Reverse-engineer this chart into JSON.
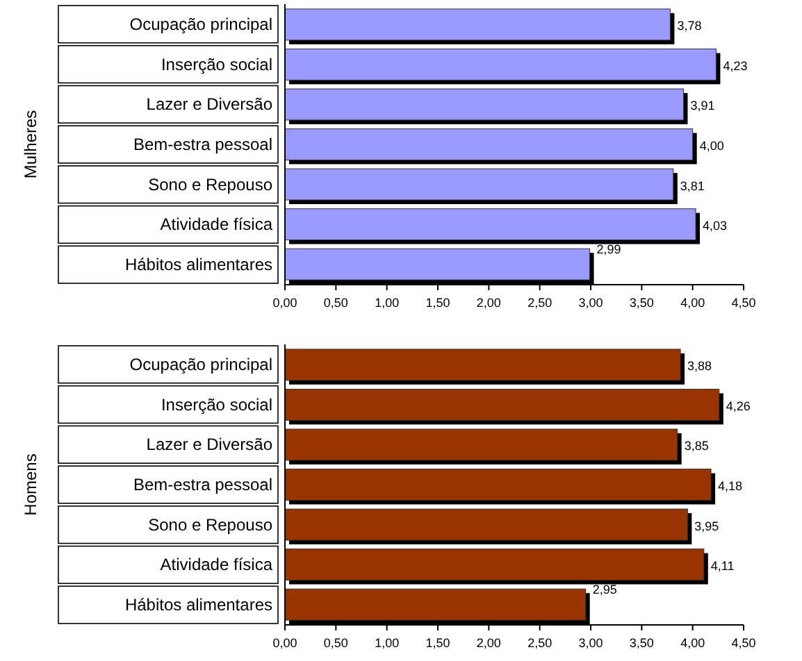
{
  "chart_data": [
    {
      "type": "bar",
      "orientation": "horizontal",
      "ylabel": "Mulheres",
      "categories": [
        "Ocupação principal",
        "Inserção social",
        "Lazer e Diversão",
        "Bem-estra pessoal",
        "Sono e Repouso",
        "Atividade física",
        "Hábitos alimentares"
      ],
      "values": [
        3.78,
        4.23,
        3.91,
        4.0,
        3.81,
        4.03,
        2.99
      ],
      "value_labels": [
        "3,78",
        "4,23",
        "3,91",
        "4,00",
        "3,81",
        "4,03",
        "2,99"
      ],
      "color": "#9999ff",
      "xlim": [
        0,
        4.5
      ],
      "xticks": [
        {
          "value": 0,
          "label": "0,00"
        },
        {
          "value": 0.5,
          "label": "0,50"
        },
        {
          "value": 1,
          "label": "1,00"
        },
        {
          "value": 1.5,
          "label": "1,50"
        },
        {
          "value": 2,
          "label": "2,00"
        },
        {
          "value": 2.5,
          "label": "2,50"
        },
        {
          "value": 3,
          "label": "3,00"
        },
        {
          "value": 3.5,
          "label": "3,50"
        },
        {
          "value": 4,
          "label": "4,00"
        },
        {
          "value": 4.5,
          "label": "4,50"
        }
      ],
      "grid": false
    },
    {
      "type": "bar",
      "orientation": "horizontal",
      "ylabel": "Homens",
      "categories": [
        "Ocupação principal",
        "Inserção social",
        "Lazer e Diversão",
        "Bem-estra pessoal",
        "Sono e Repouso",
        "Atividade física",
        "Hábitos alimentares"
      ],
      "values": [
        3.88,
        4.26,
        3.85,
        4.18,
        3.95,
        4.11,
        2.95
      ],
      "value_labels": [
        "3,88",
        "4,26",
        "3,85",
        "4,18",
        "3,95",
        "4,11",
        "2,95"
      ],
      "color": "#993300",
      "xlim": [
        0,
        4.5
      ],
      "xticks": [
        {
          "value": 0,
          "label": "0,00"
        },
        {
          "value": 0.5,
          "label": "0,50"
        },
        {
          "value": 1,
          "label": "1,00"
        },
        {
          "value": 1.5,
          "label": "1,50"
        },
        {
          "value": 2,
          "label": "2,00"
        },
        {
          "value": 2.5,
          "label": "2,50"
        },
        {
          "value": 3,
          "label": "3,00"
        },
        {
          "value": 3.5,
          "label": "3,50"
        },
        {
          "value": 4,
          "label": "4,00"
        },
        {
          "value": 4.5,
          "label": "4,50"
        }
      ],
      "grid": false
    }
  ]
}
